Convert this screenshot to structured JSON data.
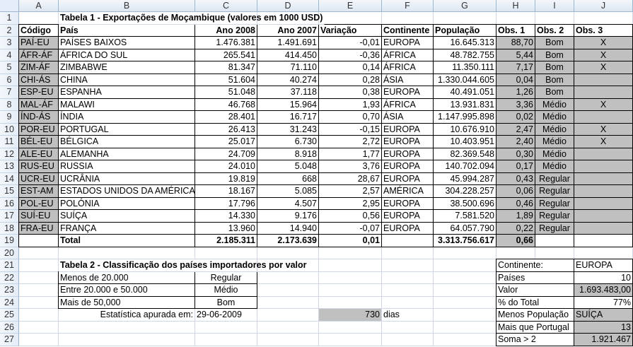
{
  "columns": [
    "A",
    "B",
    "C",
    "D",
    "E",
    "F",
    "G",
    "H",
    "I",
    "J"
  ],
  "row_numbers": [
    "1",
    "2",
    "3",
    "4",
    "5",
    "6",
    "7",
    "8",
    "9",
    "10",
    "11",
    "12",
    "13",
    "14",
    "15",
    "16",
    "17",
    "18",
    "19",
    "20",
    "21",
    "22",
    "23",
    "24",
    "25",
    "26",
    "27"
  ],
  "table1": {
    "title": "Tabela 1 - Exportações de Moçambique (valores em 1000 USD)",
    "headers": [
      "Código",
      "País",
      "Ano 2008",
      "Ano 2007",
      "Variação",
      "Continente",
      "População",
      "Obs. 1",
      "Obs. 2",
      "Obs. 3"
    ],
    "rows": [
      [
        "PAÍ-EU",
        "PAÍSES BAIXOS",
        "1.476.381",
        "1.491.691",
        "-0,01",
        "EUROPA",
        "16.645.313",
        "88,70",
        "Bom",
        "X"
      ],
      [
        "ÁFR-ÁF",
        "ÁFRICA DO SUL",
        "265.541",
        "414.450",
        "-0,36",
        "ÁFRICA",
        "48.782.755",
        "5,44",
        "Bom",
        "X"
      ],
      [
        "ZIM-ÁF",
        "ZIMBABWE",
        "81.347",
        "71.110",
        "0,14",
        "ÁFRICA",
        "11.350.111",
        "7,17",
        "Bom",
        "X"
      ],
      [
        "CHI-ÁS",
        "CHINA",
        "51.604",
        "40.274",
        "0,28",
        "ÁSIA",
        "1.330.044.605",
        "0,04",
        "Bom",
        ""
      ],
      [
        "ESP-EU",
        "ESPANHA",
        "51.048",
        "37.118",
        "0,38",
        "EUROPA",
        "40.491.051",
        "1,26",
        "Bom",
        ""
      ],
      [
        "MAL-ÁF",
        "MALAWI",
        "46.768",
        "15.964",
        "1,93",
        "ÁFRICA",
        "13.931.831",
        "3,36",
        "Médio",
        "X"
      ],
      [
        "ÍND-ÁS",
        "ÍNDIA",
        "28.401",
        "16.717",
        "0,70",
        "ÁSIA",
        "1.147.995.898",
        "0,02",
        "Médio",
        ""
      ],
      [
        "POR-EU",
        "PORTUGAL",
        "26.413",
        "31.243",
        "-0,15",
        "EUROPA",
        "10.676.910",
        "2,47",
        "Médio",
        "X"
      ],
      [
        "BÉL-EU",
        "BÉLGICA",
        "25.017",
        "6.730",
        "2,72",
        "EUROPA",
        "10.403.951",
        "2,40",
        "Médio",
        "X"
      ],
      [
        "ALE-EU",
        "ALEMANHA",
        "24.709",
        "8.918",
        "1,77",
        "EUROPA",
        "82.369.548",
        "0,30",
        "Médio",
        ""
      ],
      [
        "RUS-EU",
        "RUSSIA",
        "24.010",
        "5.048",
        "3,76",
        "EUROPA",
        "140.702.094",
        "0,17",
        "Médio",
        ""
      ],
      [
        "UCR-EU",
        "UCRÂNIA",
        "19.819",
        "668",
        "28,67",
        "EUROPA",
        "45.994.287",
        "0,43",
        "Regular",
        ""
      ],
      [
        "EST-AM",
        "ESTADOS UNIDOS DA AMÉRICA",
        "18.167",
        "5.085",
        "2,57",
        "AMÉRICA",
        "304.228.257",
        "0,06",
        "Regular",
        ""
      ],
      [
        "POL-EU",
        "POLÓNIA",
        "17.796",
        "4.507",
        "2,95",
        "EUROPA",
        "38.500.696",
        "0,46",
        "Regular",
        ""
      ],
      [
        "SUÍ-EU",
        "SUÍÇA",
        "14.330",
        "9.176",
        "0,56",
        "EUROPA",
        "7.581.520",
        "1,89",
        "Regular",
        ""
      ],
      [
        "FRA-EU",
        "FRANÇA",
        "13.960",
        "14.940",
        "-0,07",
        "EUROPA",
        "64.057.790",
        "0,22",
        "Regular",
        ""
      ]
    ],
    "total": [
      "",
      "Total",
      "2.185.311",
      "2.173.639",
      "0,01",
      "",
      "3.313.756.617",
      "0,66",
      "",
      ""
    ]
  },
  "table2": {
    "title": "Tabela 2 - Classificação dos países importadores por valor",
    "rows": [
      [
        "Menos de 20.000",
        "Regular"
      ],
      [
        "Entre 20.000 e 50.000",
        "Médio"
      ],
      [
        "Mais de 50,000",
        "Bom"
      ]
    ],
    "stat_label": "Estatística apurada em:",
    "stat_date": "29-06-2009",
    "days_value": "730",
    "days_unit": "dias"
  },
  "summary": {
    "rows": [
      [
        "Continente:",
        "EUROPA"
      ],
      [
        "Países",
        "10"
      ],
      [
        "Valor",
        "1.693.483,00"
      ],
      [
        "% do Total",
        "77%"
      ],
      [
        "Menos População",
        "SUÍÇA"
      ],
      [
        "Mais que Portugal",
        "13"
      ],
      [
        "Soma > 2",
        "1.921.467"
      ]
    ]
  },
  "colors": {
    "shaded_cell": "#c0c0c0",
    "gridline": "#d0d7e5",
    "header_bg": "#e4ecf7"
  }
}
